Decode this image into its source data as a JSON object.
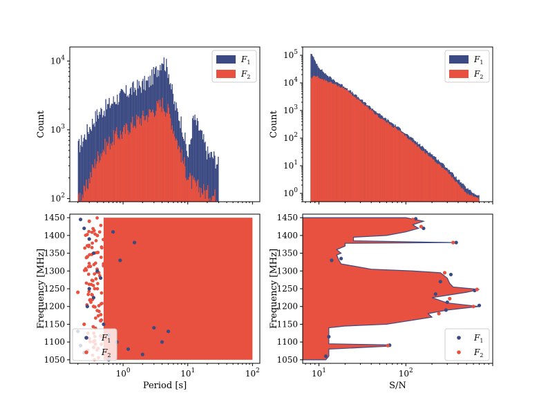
{
  "colors": {
    "f1": "#3b4a82",
    "f2": "#e8513f",
    "axis": "#000000",
    "background": "#ffffff"
  },
  "chart_data": [
    {
      "id": "period-hist",
      "type": "bar",
      "xscale": "log",
      "yscale": "log",
      "xlim": [
        0.15,
        130
      ],
      "ylim": [
        90,
        16000
      ],
      "xlabel": "",
      "ylabel": "Count",
      "yticks": [
        {
          "label": "10",
          "exp": "2",
          "value": 100
        },
        {
          "label": "10",
          "exp": "3",
          "value": 1000
        },
        {
          "label": "10",
          "exp": "4",
          "value": 10000
        }
      ],
      "xticks": [],
      "legend": {
        "position": "top-right",
        "entries": [
          {
            "name": "F",
            "sub": "1",
            "style": "patch"
          },
          {
            "name": "F",
            "sub": "2",
            "style": "patch"
          }
        ]
      },
      "series": [
        {
          "name": "F1",
          "x": [
            0.2,
            0.25,
            0.3,
            0.35,
            0.4,
            0.5,
            0.6,
            0.7,
            0.8,
            1.0,
            1.2,
            1.5,
            2.0,
            2.5,
            3.0,
            3.5,
            4.0,
            5.0,
            6.0,
            8.0,
            10,
            12,
            15,
            20,
            25,
            30
          ],
          "y": [
            550,
            800,
            1100,
            1400,
            1700,
            2000,
            2300,
            2600,
            2900,
            3200,
            3600,
            4000,
            4500,
            5000,
            6500,
            8000,
            11000,
            7000,
            2500,
            1200,
            400,
            1500,
            1000,
            450,
            400,
            300
          ]
        },
        {
          "name": "F2",
          "x": [
            0.2,
            0.25,
            0.3,
            0.35,
            0.4,
            0.5,
            0.6,
            0.7,
            0.8,
            1.0,
            1.2,
            1.5,
            2.0,
            2.5,
            3.0,
            3.5,
            4.0,
            5.0,
            6.0,
            8.0,
            10,
            12,
            15,
            20,
            25,
            30
          ],
          "y": [
            110,
            120,
            200,
            300,
            400,
            550,
            650,
            750,
            850,
            900,
            1100,
            1300,
            1500,
            1700,
            2000,
            2200,
            2400,
            1800,
            1000,
            400,
            200,
            160,
            140,
            120,
            110,
            100
          ]
        }
      ]
    },
    {
      "id": "snr-hist",
      "type": "bar",
      "xscale": "log",
      "yscale": "log",
      "xlim": [
        6.5,
        1000
      ],
      "ylim": [
        0.5,
        200000
      ],
      "xlabel": "",
      "ylabel": "Count",
      "yticks": [
        {
          "label": "10",
          "exp": "0",
          "value": 1
        },
        {
          "label": "10",
          "exp": "1",
          "value": 10
        },
        {
          "label": "10",
          "exp": "2",
          "value": 100
        },
        {
          "label": "10",
          "exp": "3",
          "value": 1000
        },
        {
          "label": "10",
          "exp": "4",
          "value": 10000
        },
        {
          "label": "10",
          "exp": "5",
          "value": 100000
        }
      ],
      "xticks": [],
      "legend": {
        "position": "top-right",
        "entries": [
          {
            "name": "F",
            "sub": "1",
            "style": "patch"
          },
          {
            "name": "F",
            "sub": "2",
            "style": "patch"
          }
        ]
      },
      "series": [
        {
          "name": "F1",
          "x": [
            8,
            9,
            10,
            12,
            15,
            20,
            30,
            50,
            80,
            120,
            200,
            300,
            400,
            500,
            600,
            700
          ],
          "y": [
            120000,
            60000,
            35000,
            20000,
            12000,
            7000,
            2500,
            700,
            250,
            90,
            25,
            8,
            3,
            1.5,
            1,
            0.8
          ]
        },
        {
          "name": "F2",
          "x": [
            8,
            9,
            10,
            12,
            15,
            20,
            30,
            50,
            80,
            120,
            200,
            300,
            400,
            500,
            600,
            700
          ],
          "y": [
            15000,
            18000,
            15000,
            12000,
            9000,
            6000,
            2000,
            550,
            200,
            70,
            18,
            6,
            2,
            1,
            0.8,
            0.6
          ]
        }
      ]
    },
    {
      "id": "period-freq-scatter",
      "type": "scatter",
      "xscale": "log",
      "yscale": "linear",
      "xlim": [
        0.15,
        130
      ],
      "ylim": [
        1040,
        1460
      ],
      "xlabel": "Period [s]",
      "ylabel": "Frequency [MHz]",
      "xticks": [
        {
          "label": "10",
          "exp": "0",
          "value": 1
        },
        {
          "label": "10",
          "exp": "1",
          "value": 10
        },
        {
          "label": "10",
          "exp": "2",
          "value": 100
        }
      ],
      "yticks": [
        {
          "label": "1050",
          "value": 1050
        },
        {
          "label": "1100",
          "value": 1100
        },
        {
          "label": "1150",
          "value": 1150
        },
        {
          "label": "1200",
          "value": 1200
        },
        {
          "label": "1250",
          "value": 1250
        },
        {
          "label": "1300",
          "value": 1300
        },
        {
          "label": "1350",
          "value": 1350
        },
        {
          "label": "1400",
          "value": 1400
        },
        {
          "label": "1450",
          "value": 1450
        }
      ],
      "legend": {
        "position": "bottom-left",
        "entries": [
          {
            "name": "F",
            "sub": "1",
            "style": "dot"
          },
          {
            "name": "F",
            "sub": "2",
            "style": "dot"
          }
        ]
      },
      "fill_f2": {
        "x_min": 0.5,
        "x_max": 100,
        "y_min": 1050,
        "y_max": 1450
      },
      "series": [
        {
          "name": "F1",
          "points": [
            [
              0.22,
              1445
            ],
            [
              0.25,
              1420
            ],
            [
              0.3,
              1390
            ],
            [
              0.35,
              1350
            ],
            [
              0.4,
              1300
            ],
            [
              0.45,
              1280
            ],
            [
              0.3,
              1250
            ],
            [
              0.28,
              1200
            ],
            [
              0.5,
              1150
            ],
            [
              0.6,
              1120
            ],
            [
              0.8,
              1100
            ],
            [
              1.2,
              1080
            ],
            [
              2,
              1065
            ],
            [
              3,
              1140
            ],
            [
              4,
              1100
            ],
            [
              5,
              1130
            ],
            [
              0.2,
              1130
            ],
            [
              0.22,
              1090
            ],
            [
              0.9,
              1330
            ],
            [
              1.5,
              1380
            ],
            [
              0.7,
              1410
            ],
            [
              0.35,
              1225
            ],
            [
              0.6,
              1050
            ],
            [
              0.25,
              1070
            ]
          ]
        },
        {
          "name": "F2",
          "points": [
            [
              0.3,
              1440
            ],
            [
              0.4,
              1400
            ],
            [
              0.5,
              1320
            ],
            [
              0.6,
              1260
            ],
            [
              0.35,
              1200
            ],
            [
              0.45,
              1160
            ],
            [
              0.7,
              1140
            ],
            [
              0.3,
              1110
            ],
            [
              0.25,
              1150
            ],
            [
              0.35,
              1085
            ],
            [
              0.28,
              1340
            ],
            [
              0.55,
              1360
            ],
            [
              0.8,
              1420
            ],
            [
              0.2,
              1240
            ]
          ]
        }
      ]
    },
    {
      "id": "snr-freq-scatter",
      "type": "scatter",
      "xscale": "log",
      "yscale": "linear",
      "xlim": [
        6.5,
        1000
      ],
      "ylim": [
        1040,
        1460
      ],
      "xlabel": "S/N",
      "ylabel": "Frequency [MHz]",
      "xticks": [
        {
          "label": "10",
          "exp": "1",
          "value": 10
        },
        {
          "label": "10",
          "exp": "2",
          "value": 100
        }
      ],
      "yticks": [
        {
          "label": "1050",
          "value": 1050
        },
        {
          "label": "1100",
          "value": 1100
        },
        {
          "label": "1150",
          "value": 1150
        },
        {
          "label": "1200",
          "value": 1200
        },
        {
          "label": "1250",
          "value": 1250
        },
        {
          "label": "1300",
          "value": 1300
        },
        {
          "label": "1350",
          "value": 1350
        },
        {
          "label": "1400",
          "value": 1400
        },
        {
          "label": "1450",
          "value": 1450
        }
      ],
      "legend": {
        "position": "bottom-right",
        "entries": [
          {
            "name": "F",
            "sub": "1",
            "style": "dot"
          },
          {
            "name": "F",
            "sub": "2",
            "style": "dot"
          }
        ]
      },
      "envelope": [
        [
          1050,
          12
        ],
        [
          1060,
          13
        ],
        [
          1080,
          13
        ],
        [
          1088,
          60
        ],
        [
          1092,
          60
        ],
        [
          1095,
          13
        ],
        [
          1140,
          13
        ],
        [
          1145,
          20
        ],
        [
          1150,
          60
        ],
        [
          1170,
          200
        ],
        [
          1180,
          180
        ],
        [
          1190,
          300
        ],
        [
          1200,
          700
        ],
        [
          1210,
          300
        ],
        [
          1225,
          200
        ],
        [
          1240,
          500
        ],
        [
          1248,
          700
        ],
        [
          1255,
          350
        ],
        [
          1265,
          320
        ],
        [
          1280,
          300
        ],
        [
          1295,
          250
        ],
        [
          1300,
          120
        ],
        [
          1305,
          40
        ],
        [
          1320,
          18
        ],
        [
          1330,
          17
        ],
        [
          1345,
          16
        ],
        [
          1350,
          18
        ],
        [
          1360,
          16
        ],
        [
          1370,
          20
        ],
        [
          1378,
          20
        ],
        [
          1380,
          350
        ],
        [
          1385,
          25
        ],
        [
          1395,
          25
        ],
        [
          1400,
          60
        ],
        [
          1410,
          100
        ],
        [
          1420,
          140
        ],
        [
          1430,
          120
        ],
        [
          1440,
          160
        ],
        [
          1450,
          100
        ]
      ],
      "series": [
        {
          "name": "F1",
          "points": [
            [
              700,
              1203
            ],
            [
              620,
              1245
            ],
            [
              380,
              1380
            ],
            [
              330,
              1290
            ],
            [
              290,
              1190
            ],
            [
              250,
              1270
            ],
            [
              160,
              1420
            ],
            [
              130,
              1447
            ],
            [
              65,
              1091
            ],
            [
              13,
              1115
            ],
            [
              14,
              1330
            ],
            [
              18,
              1335
            ],
            [
              12,
              1060
            ],
            [
              300,
              1212
            ],
            [
              220,
              1235
            ]
          ]
        },
        {
          "name": "F2",
          "points": [
            [
              660,
              1248
            ],
            [
              600,
              1200
            ],
            [
              350,
              1380
            ],
            [
              280,
              1295
            ],
            [
              240,
              1180
            ],
            [
              150,
              1425
            ],
            [
              120,
              1445
            ],
            [
              62,
              1090
            ],
            [
              200,
              1265
            ],
            [
              320,
              1222
            ]
          ]
        }
      ]
    }
  ]
}
